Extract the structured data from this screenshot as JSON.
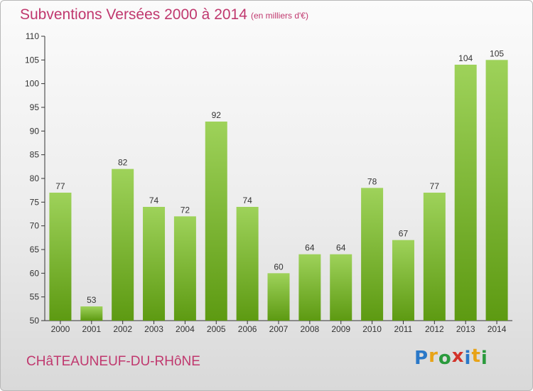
{
  "header": {
    "title": "Subventions Versées 2000 à 2014",
    "subtitle": "(en milliers d'€)"
  },
  "footer": {
    "town": "CHâTEAUNEUF-DU-RHôNE",
    "logo": [
      "P",
      "r",
      "o",
      "x",
      "i",
      "t",
      "i"
    ],
    "logo_colors": [
      "#2a78c8",
      "#e8a317",
      "#2a9a3c",
      "#d2332a",
      "#2a78c8",
      "#e8a317",
      "#2a9a3c"
    ]
  },
  "colors": {
    "bar_top": "#9ed25a",
    "bar_bottom": "#5d9a12",
    "accent": "#c0386e"
  },
  "chart_data": {
    "type": "bar",
    "categories": [
      "2000",
      "2001",
      "2002",
      "2003",
      "2004",
      "2005",
      "2006",
      "2007",
      "2008",
      "2009",
      "2010",
      "2011",
      "2012",
      "2013",
      "2014"
    ],
    "values": [
      77,
      53,
      82,
      74,
      72,
      92,
      74,
      60,
      64,
      64,
      78,
      67,
      77,
      104,
      105
    ],
    "ylim": [
      50,
      110
    ],
    "yticks": [
      50,
      55,
      60,
      65,
      70,
      75,
      80,
      85,
      90,
      95,
      100,
      105,
      110
    ],
    "grid": false,
    "data_labels": true
  }
}
